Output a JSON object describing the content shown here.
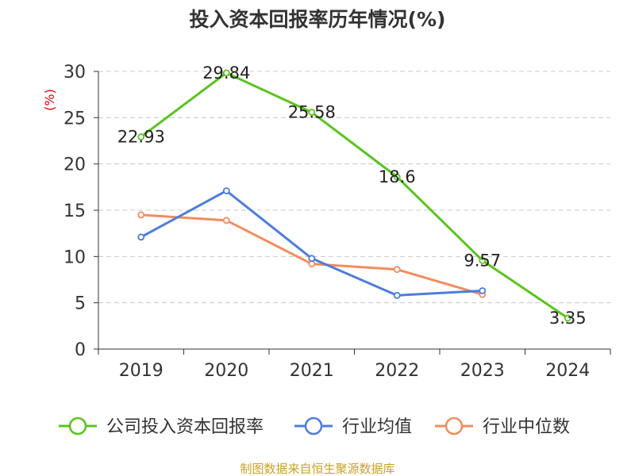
{
  "chart_data": {
    "type": "line",
    "title": "投入资本回报率历年情况(%)",
    "ylabel": "(%)",
    "xlabel": "",
    "categories": [
      "2019",
      "2020",
      "2021",
      "2022",
      "2023",
      "2024"
    ],
    "ylim": [
      0,
      30
    ],
    "yticks": [
      0,
      5,
      10,
      15,
      20,
      25,
      30
    ],
    "grid": true,
    "legend_position": "bottom",
    "series": [
      {
        "name": "公司投入资本回报率",
        "color": "#5ac41e",
        "values": [
          22.93,
          29.84,
          25.58,
          18.6,
          9.57,
          3.35
        ],
        "labels": [
          "22.93",
          "29.84",
          "25.58",
          "18.6",
          "9.57",
          "3.35"
        ]
      },
      {
        "name": "行业均值",
        "color": "#4e7ddb",
        "values": [
          12.1,
          17.1,
          9.8,
          5.8,
          6.3,
          null
        ]
      },
      {
        "name": "行业中位数",
        "color": "#f28c5e",
        "values": [
          14.5,
          13.9,
          9.2,
          8.6,
          5.9,
          null
        ]
      }
    ]
  },
  "source": "制图数据来自恒生聚源数据库"
}
